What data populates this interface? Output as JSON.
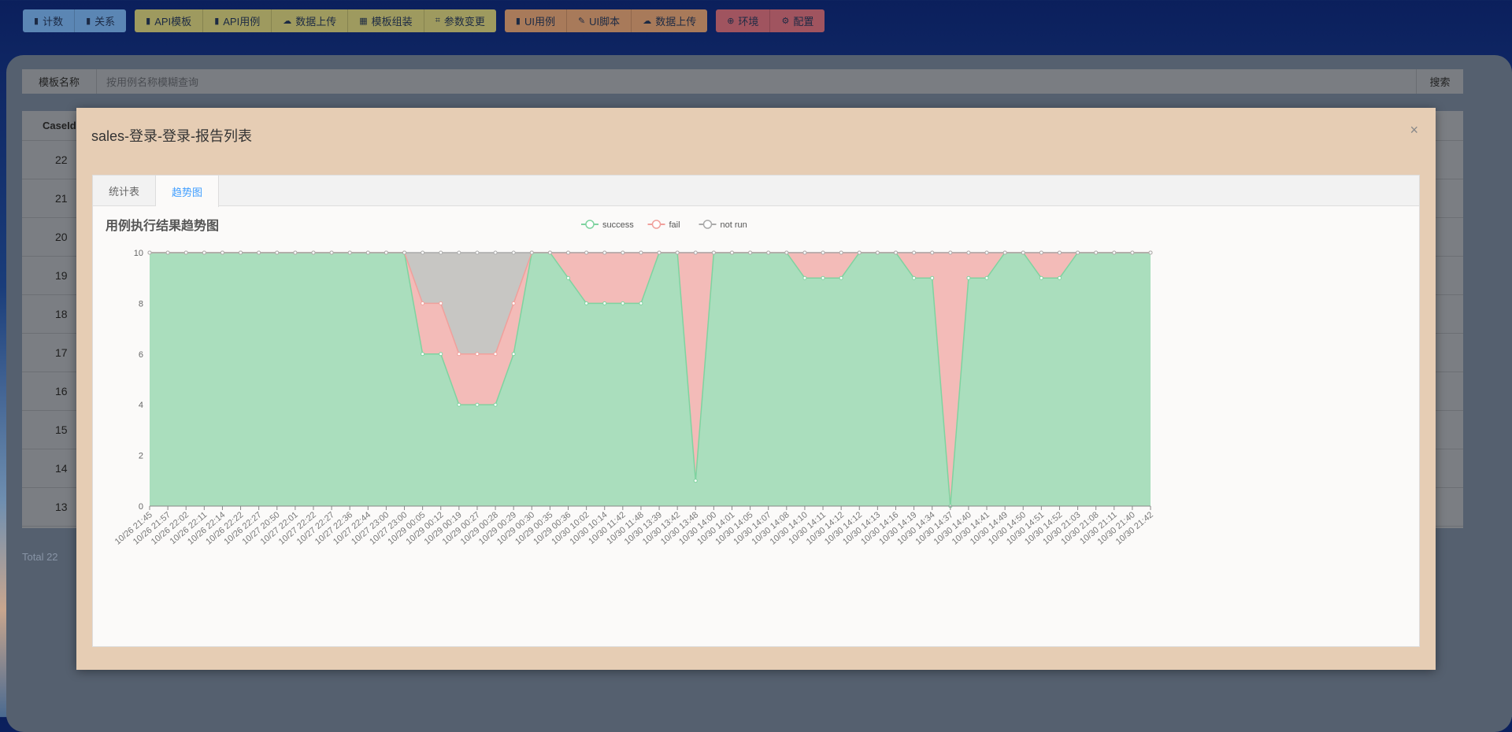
{
  "toolbar": {
    "groups": [
      [
        {
          "icon": "bar-chart-icon",
          "label": "计数"
        },
        {
          "icon": "bar-chart-icon",
          "label": "关系"
        }
      ],
      [
        {
          "icon": "clipboard-icon",
          "label": "API模板"
        },
        {
          "icon": "clipboard-icon",
          "label": "API用例"
        },
        {
          "icon": "cloud-upload-icon",
          "label": "数据上传"
        },
        {
          "icon": "grid-icon",
          "label": "模板组装"
        },
        {
          "icon": "crop-icon",
          "label": "参数变更"
        }
      ],
      [
        {
          "icon": "clipboard-icon",
          "label": "UI用例"
        },
        {
          "icon": "edit-icon",
          "label": "UI脚本"
        },
        {
          "icon": "cloud-upload-icon",
          "label": "数据上传"
        }
      ],
      [
        {
          "icon": "plus-circle-icon",
          "label": "环境"
        },
        {
          "icon": "gear-icon",
          "label": "配置"
        }
      ]
    ]
  },
  "search": {
    "label": "模板名称",
    "placeholder": "按用例名称模糊查询",
    "button": "搜索"
  },
  "table": {
    "header": "CaseId",
    "rows": [
      "22",
      "21",
      "20",
      "19",
      "18",
      "17",
      "16",
      "15",
      "14",
      "13"
    ],
    "total": "Total 22"
  },
  "modal": {
    "title": "sales-登录-登录-报告列表",
    "close": "×",
    "tabs": [
      {
        "label": "统计表",
        "active": false
      },
      {
        "label": "趋势图",
        "active": true
      }
    ]
  },
  "chart_data": {
    "type": "area",
    "stacked": true,
    "title": "用例执行结果趋势图",
    "legend_position": "top-center",
    "ylim": [
      0,
      10
    ],
    "yticks": [
      0,
      2,
      4,
      6,
      8,
      10
    ],
    "grid": true,
    "x": [
      "10/26 21:45",
      "10/26 21:57",
      "10/26 22:02",
      "10/26 22:11",
      "10/26 22:14",
      "10/26 22:22",
      "10/26 22:27",
      "10/27 20:50",
      "10/27 22:01",
      "10/27 22:22",
      "10/27 22:27",
      "10/27 22:36",
      "10/27 22:44",
      "10/27 23:00",
      "10/27 23:00",
      "10/29 00:05",
      "10/29 00:12",
      "10/29 00:19",
      "10/29 00:27",
      "10/29 00:28",
      "10/29 00:29",
      "10/29 00:30",
      "10/29 00:35",
      "10/29 00:36",
      "10/30 10:02",
      "10/30 10:14",
      "10/30 11:42",
      "10/30 11:48",
      "10/30 13:39",
      "10/30 13:42",
      "10/30 13:48",
      "10/30 14:00",
      "10/30 14:01",
      "10/30 14:05",
      "10/30 14:07",
      "10/30 14:08",
      "10/30 14:10",
      "10/30 14:11",
      "10/30 14:12",
      "10/30 14:12",
      "10/30 14:13",
      "10/30 14:16",
      "10/30 14:19",
      "10/30 14:34",
      "10/30 14:37",
      "10/30 14:40",
      "10/30 14:41",
      "10/30 14:49",
      "10/30 14:50",
      "10/30 14:51",
      "10/30 14:52",
      "10/30 21:03",
      "10/30 21:08",
      "10/30 21:11",
      "10/30 21:40",
      "10/30 21:42"
    ],
    "series": [
      {
        "name": "success",
        "color": "#7fd3a0",
        "fill": "#aadebd",
        "values": [
          10,
          10,
          10,
          10,
          10,
          10,
          10,
          10,
          10,
          10,
          10,
          10,
          10,
          10,
          10,
          6,
          6,
          4,
          4,
          4,
          6,
          10,
          10,
          9,
          8,
          8,
          8,
          8,
          10,
          10,
          1,
          10,
          10,
          10,
          10,
          10,
          9,
          9,
          9,
          10,
          10,
          10,
          9,
          9,
          0,
          9,
          9,
          10,
          10,
          9,
          9,
          10,
          10,
          10,
          10,
          10
        ]
      },
      {
        "name": "fail",
        "color": "#f0a09c",
        "fill": "#f3bbb8",
        "values": [
          0,
          0,
          0,
          0,
          0,
          0,
          0,
          0,
          0,
          0,
          0,
          0,
          0,
          0,
          0,
          2,
          2,
          2,
          2,
          2,
          2,
          0,
          0,
          1,
          2,
          2,
          2,
          2,
          0,
          0,
          9,
          0,
          0,
          0,
          0,
          0,
          1,
          1,
          1,
          0,
          0,
          0,
          1,
          1,
          10,
          1,
          1,
          0,
          0,
          1,
          1,
          0,
          0,
          0,
          0,
          0
        ]
      },
      {
        "name": "not run",
        "color": "#aaaaaa",
        "fill": "#c7c6c3",
        "values": [
          0,
          0,
          0,
          0,
          0,
          0,
          0,
          0,
          0,
          0,
          0,
          0,
          0,
          0,
          0,
          2,
          2,
          4,
          4,
          4,
          2,
          0,
          0,
          0,
          0,
          0,
          0,
          0,
          0,
          0,
          0,
          0,
          0,
          0,
          0,
          0,
          0,
          0,
          0,
          0,
          0,
          0,
          0,
          0,
          0,
          0,
          0,
          0,
          0,
          0,
          0,
          0,
          0,
          0,
          0,
          0
        ]
      }
    ]
  }
}
